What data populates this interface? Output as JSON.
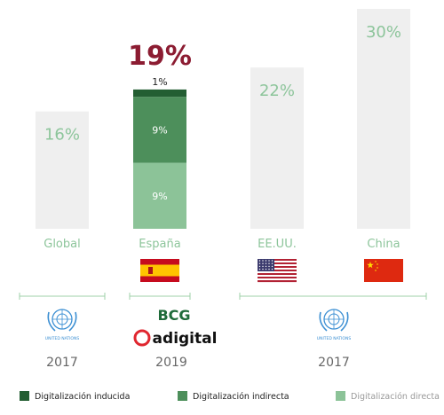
{
  "chart_data": {
    "type": "bar",
    "categories": [
      "Global",
      "España",
      "EE.UU.",
      "China"
    ],
    "totals": [
      16,
      19,
      22,
      30
    ],
    "total_labels": [
      "16%",
      "19%",
      "22%",
      "30%"
    ],
    "stacked_category": "España",
    "series": [
      {
        "name": "Digitalización directa",
        "values": [
          null,
          9,
          null,
          null
        ],
        "label": "9%"
      },
      {
        "name": "Digitalización indirecta",
        "values": [
          null,
          9,
          null,
          null
        ],
        "label": "9%"
      },
      {
        "name": "Digitalización inducida",
        "values": [
          null,
          1,
          null,
          null
        ],
        "label": "1%"
      }
    ],
    "ylim": [
      0,
      30
    ],
    "grid": false,
    "legend_position": "bottom",
    "sources": [
      {
        "logo": "un-emblem",
        "logo_caption": "UNITED NATIONS",
        "year": "2017"
      },
      {
        "logo": "bcg-adigital",
        "logo_text": [
          "BCG",
          "adigital"
        ],
        "year": "2019"
      },
      {
        "logo": "un-emblem",
        "logo_caption": "UNITED NATIONS",
        "year": "2017"
      }
    ]
  },
  "flags": [
    "",
    "spain-flag",
    "usa-flag",
    "china-flag"
  ],
  "colors": {
    "bar_gray": "#efefef",
    "label_green": "#8dc59b",
    "directa": "#8cc398",
    "indirecta": "#4d8f5b",
    "inducida": "#235e32",
    "highlight": "#8c1c32",
    "text_gray": "#666666",
    "un_blue": "#3b8fd3"
  }
}
